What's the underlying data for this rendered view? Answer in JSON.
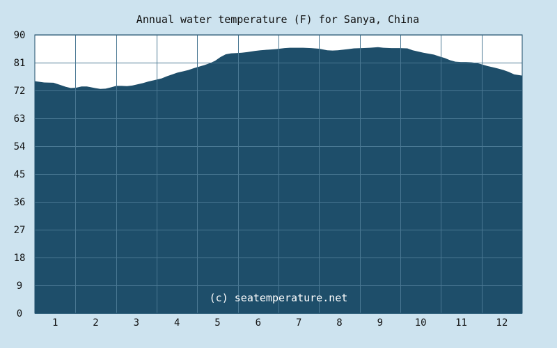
{
  "chart_data": {
    "type": "area",
    "title": "Annual water temperature (F) for Sanya, China",
    "watermark": "(c) seatemperature.net",
    "x_ticks": [
      "1",
      "2",
      "3",
      "4",
      "5",
      "6",
      "7",
      "8",
      "9",
      "10",
      "11",
      "12"
    ],
    "y_ticks": [
      "0",
      "9",
      "18",
      "27",
      "36",
      "45",
      "54",
      "63",
      "72",
      "81",
      "90"
    ],
    "ylim": [
      0,
      90
    ],
    "xlim": [
      1,
      366
    ],
    "grid": true,
    "colors": {
      "background": "#cde3ef",
      "plot_background": "#ffffff",
      "fill": "#1e4e6a",
      "grid": "#4a7893",
      "border": "#1e4e6a"
    },
    "series": [
      {
        "x": [
          1,
          8,
          15,
          20,
          24,
          28,
          32,
          36,
          40,
          46,
          50,
          54,
          58,
          62,
          66,
          70,
          74,
          78,
          82,
          86,
          90,
          96,
          100,
          104,
          108,
          112,
          116,
          120,
          124,
          128,
          132,
          136,
          140,
          144,
          148,
          152,
          156,
          160,
          166,
          170,
          176,
          182,
          188,
          192,
          196,
          202,
          208,
          214,
          220,
          224,
          228,
          232,
          236,
          240,
          246,
          252,
          258,
          262,
          268,
          274,
          280,
          284,
          288,
          292,
          296,
          300,
          304,
          308,
          312,
          316,
          320,
          324,
          328,
          332,
          336,
          340,
          344,
          348,
          352,
          356,
          360,
          366
        ],
        "y": [
          75.0,
          74.6,
          74.5,
          73.8,
          73.2,
          72.8,
          72.9,
          73.3,
          73.3,
          72.8,
          72.5,
          72.6,
          73.0,
          73.5,
          73.5,
          73.4,
          73.6,
          74.0,
          74.4,
          74.9,
          75.3,
          75.9,
          76.6,
          77.2,
          77.8,
          78.2,
          78.6,
          79.2,
          79.7,
          80.2,
          80.8,
          81.6,
          82.8,
          83.7,
          84.0,
          84.1,
          84.2,
          84.4,
          84.8,
          85.0,
          85.2,
          85.4,
          85.7,
          85.8,
          85.8,
          85.8,
          85.7,
          85.5,
          85.0,
          84.9,
          85.0,
          85.2,
          85.4,
          85.6,
          85.7,
          85.8,
          86.0,
          85.8,
          85.7,
          85.7,
          85.6,
          85.0,
          84.6,
          84.2,
          83.9,
          83.6,
          83.0,
          82.5,
          81.8,
          81.3,
          81.2,
          81.2,
          81.1,
          80.9,
          80.4,
          79.9,
          79.5,
          79.1,
          78.6,
          78.0,
          77.2,
          76.8
        ]
      }
    ]
  }
}
